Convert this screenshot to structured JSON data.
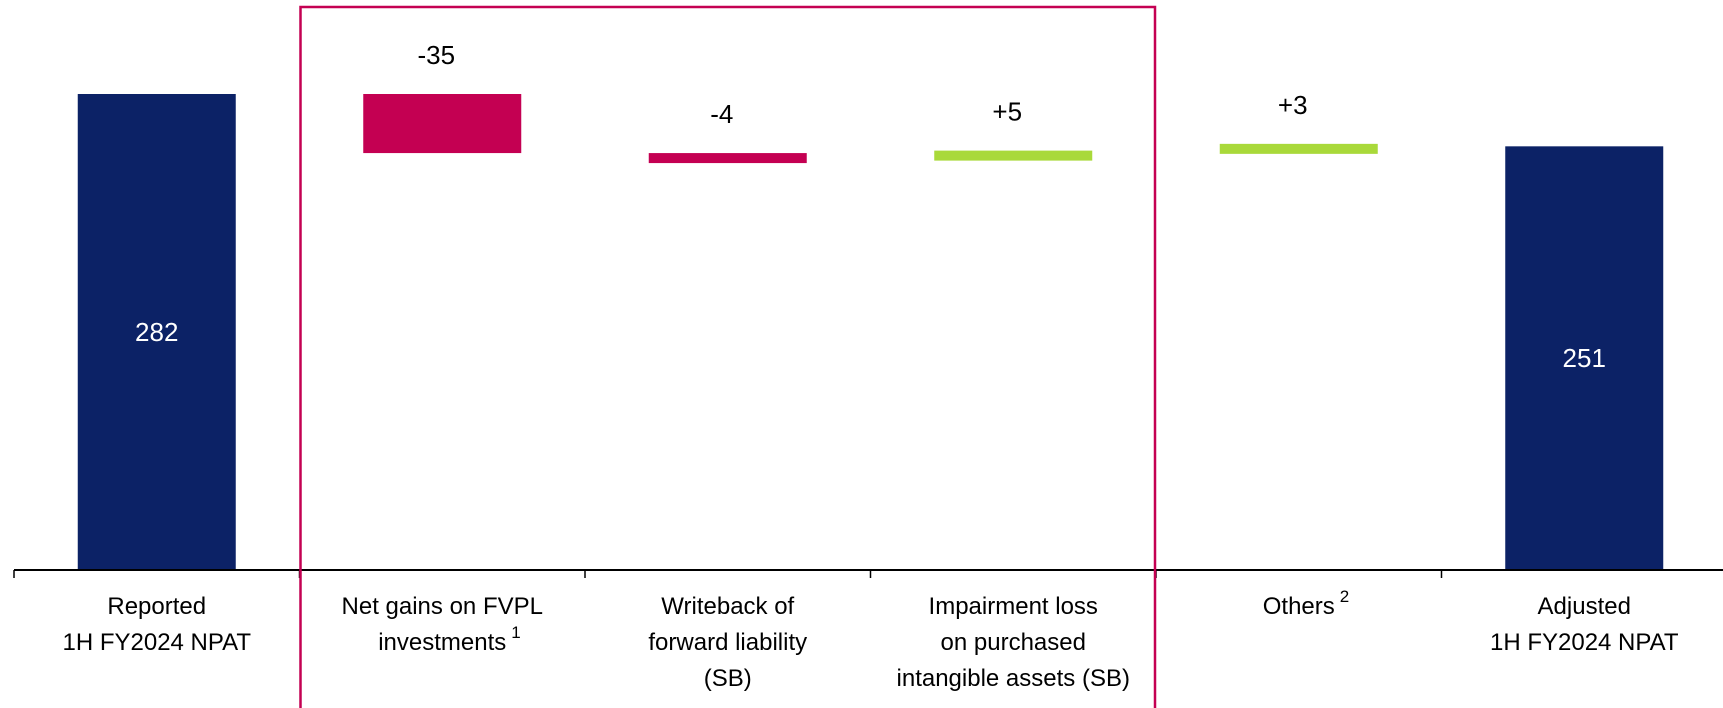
{
  "colors": {
    "total": "#0c2266",
    "negative": "#c40052",
    "positive": "#a9d93a",
    "highlight_box": "#c40052",
    "axis": "#000000"
  },
  "chart_data": {
    "type": "bar",
    "subtype": "waterfall",
    "categories": [
      {
        "lines": [
          "Reported",
          "1H FY2024 NPAT"
        ],
        "footnote": ""
      },
      {
        "lines": [
          "Net gains on FVPL",
          "investments"
        ],
        "footnote": "1"
      },
      {
        "lines": [
          "Writeback of",
          "forward liability",
          "(SB)"
        ],
        "footnote": ""
      },
      {
        "lines": [
          "Impairment loss",
          "on purchased",
          "intangible assets (SB)"
        ],
        "footnote": ""
      },
      {
        "lines": [
          "Others"
        ],
        "footnote": "2"
      },
      {
        "lines": [
          "Adjusted",
          "1H FY2024 NPAT"
        ],
        "footnote": ""
      }
    ],
    "steps": [
      {
        "kind": "total",
        "value": 282,
        "label": "282"
      },
      {
        "kind": "delta",
        "value": -35,
        "label": "-35"
      },
      {
        "kind": "delta",
        "value": -4,
        "label": "-4"
      },
      {
        "kind": "delta",
        "value": 5,
        "label": "+5"
      },
      {
        "kind": "delta",
        "value": 3,
        "label": "+3"
      },
      {
        "kind": "total",
        "value": 251,
        "label": "251"
      }
    ],
    "ylim": [
      0,
      282
    ],
    "grid": false,
    "legend": "none",
    "highlighted_categories": [
      1,
      2,
      3
    ]
  }
}
